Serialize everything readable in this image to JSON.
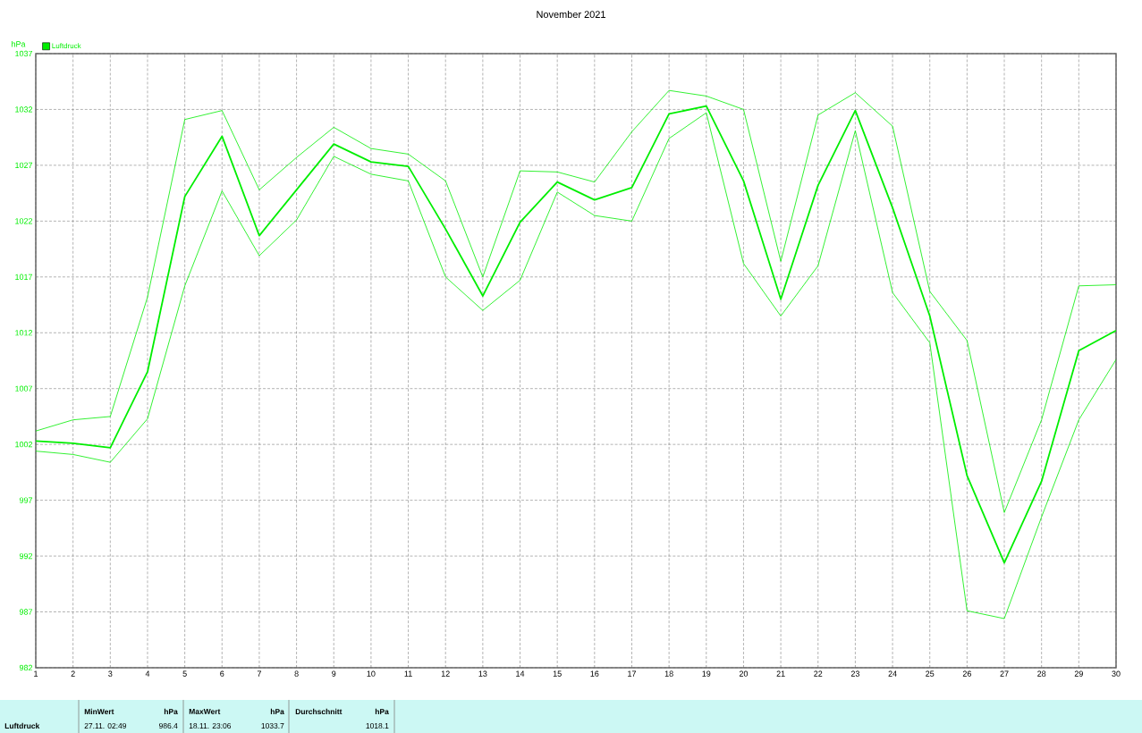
{
  "chart_data": {
    "type": "line",
    "title": "November 2021",
    "ylabel": "hPa",
    "x": [
      1,
      2,
      3,
      4,
      5,
      6,
      7,
      8,
      9,
      10,
      11,
      12,
      13,
      14,
      15,
      16,
      17,
      18,
      19,
      20,
      21,
      22,
      23,
      24,
      25,
      26,
      27,
      28,
      29,
      30
    ],
    "xlim": [
      1,
      30
    ],
    "xticks": [
      1,
      2,
      3,
      4,
      5,
      6,
      7,
      8,
      9,
      10,
      11,
      12,
      13,
      14,
      15,
      16,
      17,
      18,
      19,
      20,
      21,
      22,
      23,
      24,
      25,
      26,
      27,
      28,
      29,
      30
    ],
    "ylim": [
      982,
      1037
    ],
    "yticks": [
      982,
      987,
      992,
      997,
      1002,
      1007,
      1012,
      1017,
      1022,
      1027,
      1032,
      1037
    ],
    "series": [
      {
        "name": "Luftdruck",
        "color": "#00ee00",
        "values": [
          1002.3,
          1002.1,
          1001.7,
          1008.5,
          1024.2,
          1029.6,
          1020.7,
          1024.8,
          1028.9,
          1027.3,
          1026.9,
          1021.3,
          1015.3,
          1021.9,
          1025.5,
          1023.9,
          1025.0,
          1031.6,
          1032.3,
          1025.6,
          1015.0,
          1025.2,
          1031.9,
          1023.2,
          1013.5,
          999.2,
          991.4,
          998.7,
          1010.4,
          1012.2
        ]
      },
      {
        "color": "#00ee00",
        "values": [
          1003.2,
          1004.2,
          1004.5,
          1015.2,
          1031.1,
          1031.9,
          1024.8,
          1027.7,
          1030.4,
          1028.5,
          1028.0,
          1025.6,
          1017.0,
          1026.5,
          1026.4,
          1025.5,
          1030.0,
          1033.7,
          1033.2,
          1032.0,
          1018.4,
          1031.5,
          1033.5,
          1030.5,
          1015.7,
          1011.3,
          995.9,
          1004.2,
          1016.2,
          1016.3
        ]
      },
      {
        "color": "#00ee00",
        "values": [
          1001.4,
          1001.1,
          1000.4,
          1004.3,
          1016.2,
          1024.7,
          1018.9,
          1022.1,
          1027.8,
          1026.2,
          1025.6,
          1017.0,
          1014.0,
          1016.7,
          1024.6,
          1022.5,
          1022.0,
          1029.4,
          1031.7,
          1018.2,
          1013.5,
          1018.0,
          1030.1,
          1015.6,
          1011.1,
          987.1,
          986.4,
          995.5,
          1004.2,
          1009.6
        ]
      }
    ],
    "grid": true,
    "legend": "top left",
    "marker": "none",
    "line_style": "solid",
    "annotations": [
      "Luftdruck",
      "MinWert",
      "hPa",
      "27.11.  02:49",
      "986.4",
      "MaxWert",
      "hPa",
      "18.11.  23:06",
      "1033.7",
      "Durchschnitt",
      "hPa",
      "1018.1"
    ]
  }
}
